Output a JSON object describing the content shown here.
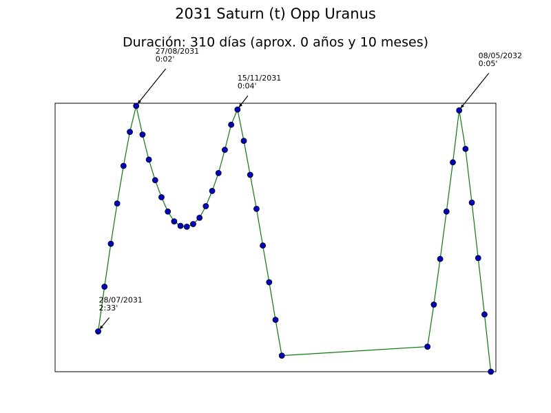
{
  "chart_data": {
    "type": "line",
    "title": "2031 Saturn (t) Opp Uranus",
    "subtitle": "Duración: 310 días (aprox. 0 años y 10 meses)",
    "x": [
      0,
      5,
      10,
      15,
      20,
      25,
      30,
      35,
      40,
      45,
      50,
      55,
      60,
      65,
      70,
      75,
      80,
      85,
      90,
      95,
      100,
      105,
      110,
      115,
      120,
      125,
      130,
      135,
      140,
      145,
      260,
      265,
      270,
      275,
      280,
      285,
      290,
      295,
      300,
      305,
      310
    ],
    "series": [
      {
        "color": "#008000",
        "marker_color": "#0000cc",
        "values": [
          2.55,
          2.05,
          1.57,
          1.12,
          0.7,
          0.32,
          0.03,
          0.35,
          0.63,
          0.86,
          1.05,
          1.21,
          1.32,
          1.37,
          1.38,
          1.35,
          1.28,
          1.15,
          0.98,
          0.78,
          0.52,
          0.24,
          0.07,
          0.42,
          0.8,
          1.18,
          1.59,
          2.0,
          2.42,
          2.82,
          2.72,
          2.25,
          1.74,
          1.21,
          0.66,
          0.08,
          0.51,
          1.11,
          1.73,
          2.36,
          3.0
        ]
      }
    ],
    "xlim": [
      -34,
      314
    ],
    "ylim": [
      3,
      0
    ],
    "annotations": [
      {
        "x": 0,
        "y": 2.55,
        "lines": [
          "28/07/2031",
          "2:33'"
        ]
      },
      {
        "x": 30,
        "y": 0.03,
        "lines": [
          "27/08/2031",
          "0:02'"
        ]
      },
      {
        "x": 110,
        "y": 0.07,
        "lines": [
          "15/11/2031",
          "0:04'"
        ]
      },
      {
        "x": 285,
        "y": 0.08,
        "lines": [
          "08/05/2032",
          "0:05'"
        ]
      }
    ]
  }
}
